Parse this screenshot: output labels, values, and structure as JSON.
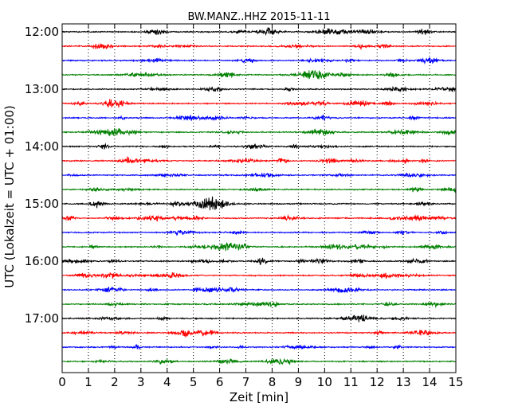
{
  "chart_data": {
    "type": "line",
    "title": "BW.MANZ..HHZ 2015-11-11",
    "xlabel": "Zeit  [min]",
    "ylabel": "UTC (Lokalzeit = UTC + 01:00)",
    "xlim": [
      0,
      15
    ],
    "x_ticks": [
      "0",
      "1",
      "2",
      "3",
      "4",
      "5",
      "6",
      "7",
      "8",
      "9",
      "10",
      "11",
      "12",
      "13",
      "14",
      "15"
    ],
    "y_ticks": [
      "12:00",
      "13:00",
      "14:00",
      "15:00",
      "16:00",
      "17:00"
    ],
    "trace_interval_min": 15,
    "trace_count": 24,
    "first_trace_utc": "12:00",
    "last_trace_utc": "17:45",
    "trace_colors": [
      "#000000",
      "#ff0000",
      "#0000ff",
      "#008000"
    ],
    "grid": "vertical dotted at each minute"
  }
}
